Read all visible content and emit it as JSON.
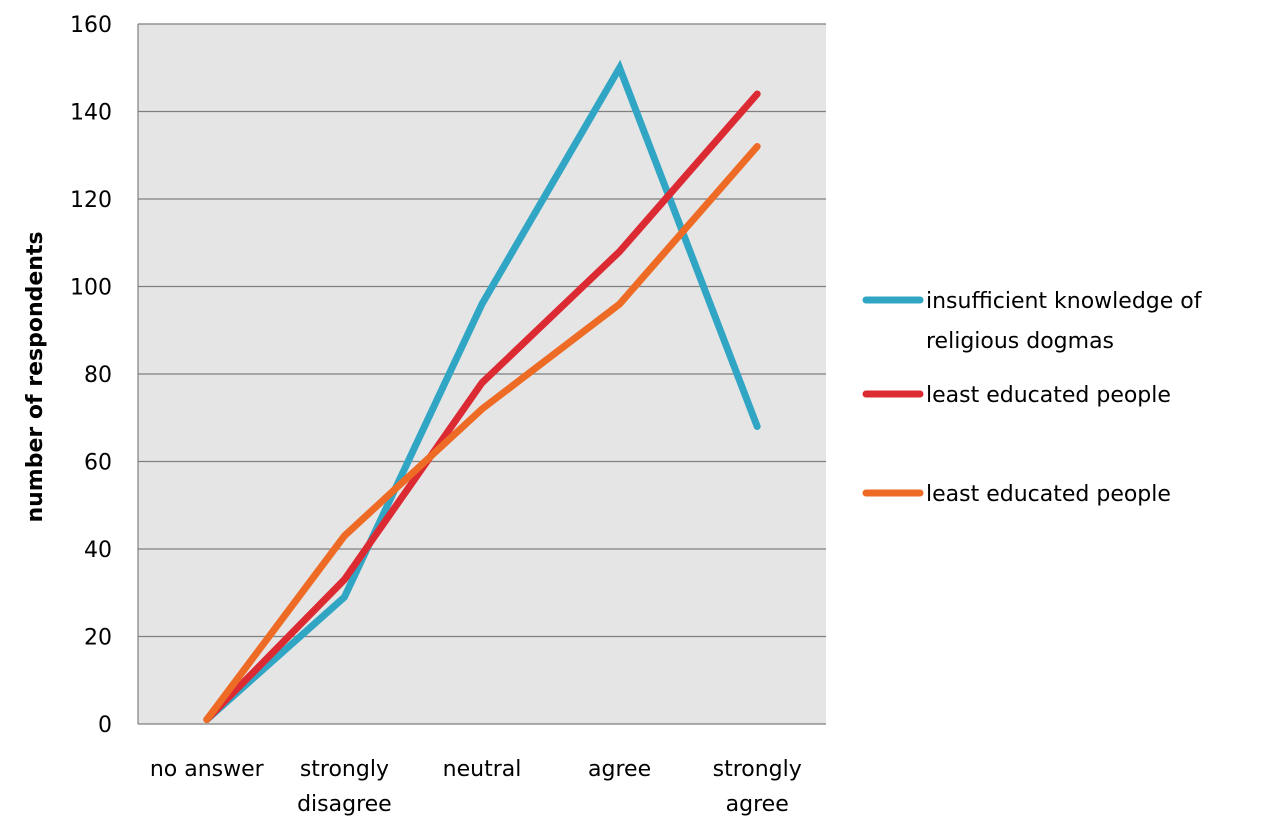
{
  "chart_data": {
    "type": "line",
    "title": "",
    "xlabel": "",
    "ylabel": "number of respondents",
    "ylim": [
      0,
      160
    ],
    "yticks": [
      0,
      20,
      40,
      60,
      80,
      100,
      120,
      140,
      160
    ],
    "grid": true,
    "legend_position": "right",
    "plot_background": "#e5e5e5",
    "categories": [
      [
        "no answer"
      ],
      [
        "strongly",
        "disagree"
      ],
      [
        "neutral"
      ],
      [
        "agree"
      ],
      [
        "strongly",
        "agree"
      ]
    ],
    "series": [
      {
        "name": [
          "insufficient knowledge of",
          "religious dogmas"
        ],
        "color": "#31a6c4",
        "values": [
          1,
          29,
          96,
          150,
          68
        ]
      },
      {
        "name": [
          "least educated people"
        ],
        "color": "#dc2a33",
        "values": [
          1,
          33,
          78,
          108,
          144
        ]
      },
      {
        "name": [
          "least educated people"
        ],
        "color": "#ee6b25",
        "values": [
          1,
          43,
          72,
          96,
          132
        ]
      }
    ]
  }
}
